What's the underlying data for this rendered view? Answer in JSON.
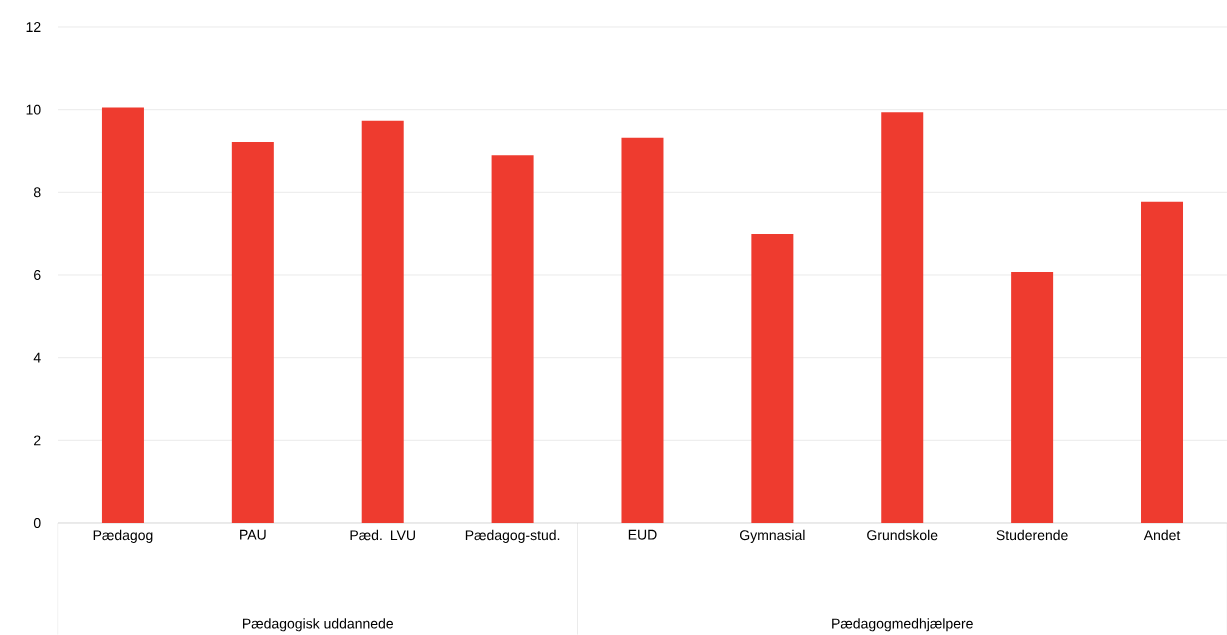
{
  "chart_data": {
    "type": "bar",
    "categories": [
      "Pædagog",
      "PAU",
      "Pæd. LVU",
      "Pædagog-stud.",
      "EUD",
      "Gymnasial",
      "Grundskole",
      "Studerende",
      "Andet"
    ],
    "values": [
      10.05,
      9.22,
      9.73,
      8.9,
      9.32,
      6.99,
      9.94,
      6.07,
      7.77
    ],
    "color": "#ee3b2f",
    "ylim": [
      0,
      12
    ],
    "yticks": [
      0,
      2,
      4,
      6,
      8,
      10,
      12
    ],
    "grid": "y",
    "annotations": [
      "Pædagogisk uddannede",
      "Pædagogmedhjælpere"
    ]
  }
}
